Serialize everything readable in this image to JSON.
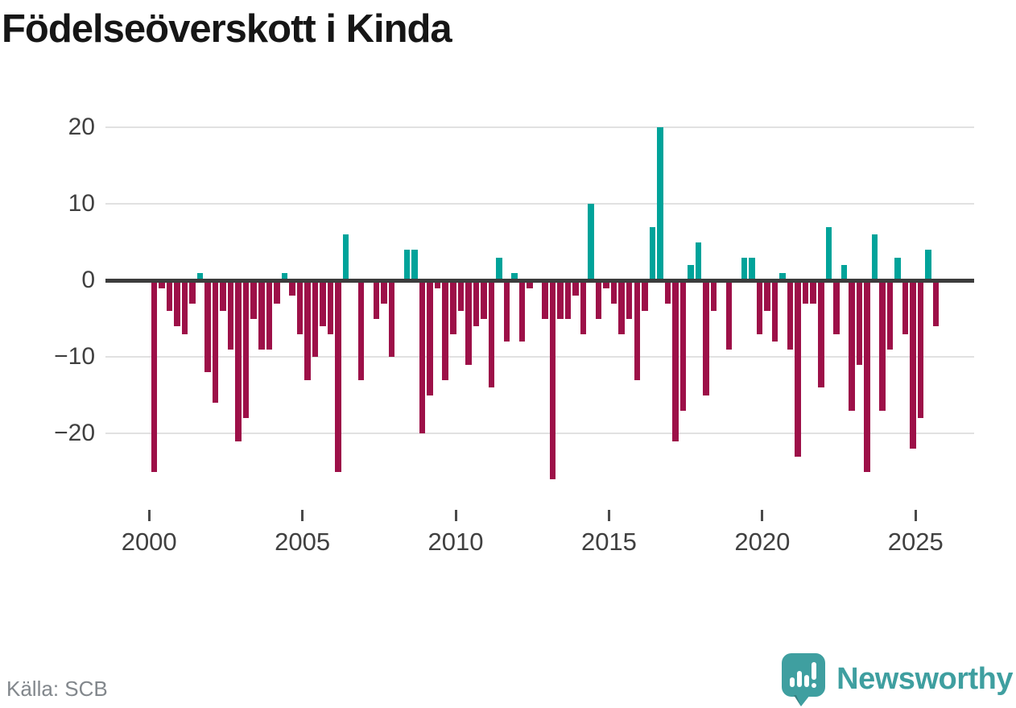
{
  "page": {
    "background": "#ffffff"
  },
  "chart_data": {
    "type": "bar",
    "title": "Födelseöverskott i Kinda",
    "x_frequency": "quarterly",
    "x_start": "2000 Q1",
    "x_end": "2025 Q3",
    "ylim": [
      -27,
      22
    ],
    "yticks": [
      20,
      10,
      0,
      -10,
      -20
    ],
    "xticks": [
      2000,
      2005,
      2010,
      2015,
      2020,
      2025
    ],
    "grid": "horizontal",
    "legend": "none",
    "positive_color": "#00a39a",
    "negative_color": "#9d1048",
    "values_by_year": [
      {
        "year": 2000,
        "q": [
          -25,
          -1,
          -4,
          -6
        ]
      },
      {
        "year": 2001,
        "q": [
          -7,
          -3,
          1,
          -12
        ]
      },
      {
        "year": 2002,
        "q": [
          -16,
          -4,
          -9,
          -21
        ]
      },
      {
        "year": 2003,
        "q": [
          -18,
          -5,
          -9,
          -9
        ]
      },
      {
        "year": 2004,
        "q": [
          -3,
          1,
          -2,
          -7
        ]
      },
      {
        "year": 2005,
        "q": [
          -13,
          -10,
          -6,
          -7
        ]
      },
      {
        "year": 2006,
        "q": [
          -25,
          6,
          0,
          -13
        ]
      },
      {
        "year": 2007,
        "q": [
          0,
          -5,
          -3,
          -10
        ]
      },
      {
        "year": 2008,
        "q": [
          0,
          4,
          4,
          -20
        ]
      },
      {
        "year": 2009,
        "q": [
          -15,
          -1,
          -13,
          -7
        ]
      },
      {
        "year": 2010,
        "q": [
          -4,
          -11,
          -6,
          -5
        ]
      },
      {
        "year": 2011,
        "q": [
          -14,
          3,
          -8,
          1
        ]
      },
      {
        "year": 2012,
        "q": [
          -8,
          -1,
          0,
          -5
        ]
      },
      {
        "year": 2013,
        "q": [
          -26,
          -5,
          -5,
          -2
        ]
      },
      {
        "year": 2014,
        "q": [
          -7,
          10,
          -5,
          -1
        ]
      },
      {
        "year": 2015,
        "q": [
          -3,
          -7,
          -5,
          -13
        ]
      },
      {
        "year": 2016,
        "q": [
          -4,
          7,
          20,
          -3
        ]
      },
      {
        "year": 2017,
        "q": [
          -21,
          -17,
          2,
          5
        ]
      },
      {
        "year": 2018,
        "q": [
          -15,
          -4,
          0,
          -9
        ]
      },
      {
        "year": 2019,
        "q": [
          0,
          3,
          3,
          -7
        ]
      },
      {
        "year": 2020,
        "q": [
          -4,
          -8,
          1,
          -9
        ]
      },
      {
        "year": 2021,
        "q": [
          -23,
          -3,
          -3,
          -14
        ]
      },
      {
        "year": 2022,
        "q": [
          7,
          -7,
          2,
          -17
        ]
      },
      {
        "year": 2023,
        "q": [
          -11,
          -25,
          6,
          -17
        ]
      },
      {
        "year": 2024,
        "q": [
          -9,
          3,
          -7,
          -22
        ]
      },
      {
        "year": 2025,
        "q": [
          -18,
          4,
          -6
        ]
      }
    ]
  },
  "source": {
    "label": "Källa: SCB"
  },
  "logo": {
    "text": "Newsworthy",
    "color": "#3f9fa0",
    "icon": "newsworthy-pin-barchart-icon"
  }
}
